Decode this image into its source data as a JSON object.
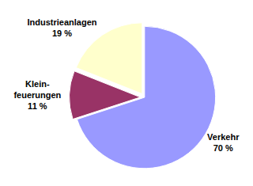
{
  "chart_data": {
    "type": "pie",
    "categories": [
      "Verkehr",
      "Klein-\nfeuerungen",
      "Industrieanlagen"
    ],
    "values": [
      70,
      11,
      19
    ],
    "value_labels": [
      "70 %",
      "11 %",
      "19 %"
    ],
    "colors": [
      "#9999ff",
      "#993366",
      "#ffffcc"
    ],
    "data_labels": true
  }
}
